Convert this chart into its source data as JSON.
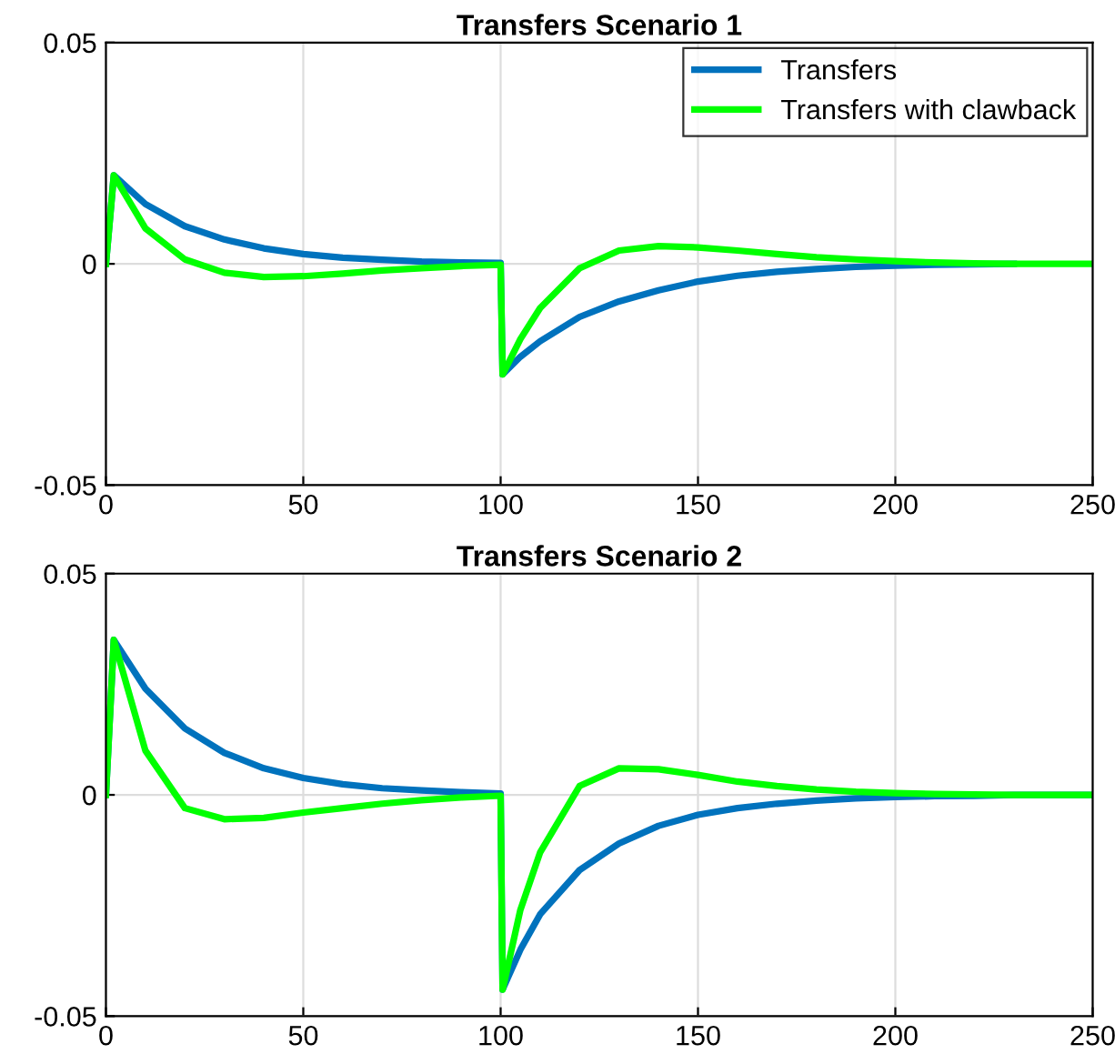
{
  "chart_data": [
    {
      "type": "line",
      "title": "Transfers Scenario 1",
      "xlim": [
        0,
        250
      ],
      "ylim": [
        -0.05,
        0.05
      ],
      "xticks": [
        0,
        50,
        100,
        150,
        200,
        250
      ],
      "yticks": [
        -0.05,
        0,
        0.05
      ],
      "grid": true,
      "legend": "top right",
      "line_style": "solid",
      "x": [
        0,
        2,
        10,
        20,
        30,
        40,
        50,
        60,
        70,
        80,
        90,
        100,
        100.5,
        105,
        110,
        120,
        130,
        140,
        150,
        160,
        170,
        180,
        190,
        200,
        210,
        220,
        230,
        240,
        250
      ],
      "series": [
        {
          "name": "Transfers",
          "color": "#0072bd",
          "values": [
            0,
            0.02,
            0.0135,
            0.0085,
            0.0055,
            0.0035,
            0.0022,
            0.0014,
            0.0009,
            0.0005,
            0.0003,
            0.0002,
            -0.025,
            -0.021,
            -0.0175,
            -0.012,
            -0.0085,
            -0.006,
            -0.004,
            -0.0027,
            -0.0018,
            -0.0012,
            -0.0007,
            -0.0004,
            -0.0002,
            -0.0001,
            0,
            null,
            null
          ]
        },
        {
          "name": "Transfers with clawback",
          "color": "#00ff00",
          "values": [
            0,
            0.02,
            0.008,
            0.001,
            -0.002,
            -0.003,
            -0.0028,
            -0.0022,
            -0.0015,
            -0.001,
            -0.0005,
            -0.0002,
            -0.025,
            -0.017,
            -0.01,
            -0.001,
            0.003,
            0.004,
            0.0037,
            0.003,
            0.0022,
            0.0015,
            0.001,
            0.0006,
            0.0003,
            0.0001,
            0,
            0,
            0
          ]
        }
      ]
    },
    {
      "type": "line",
      "title": "Transfers Scenario 2",
      "xlim": [
        0,
        250
      ],
      "ylim": [
        -0.05,
        0.05
      ],
      "xticks": [
        0,
        50,
        100,
        150,
        200,
        250
      ],
      "yticks": [
        -0.05,
        0,
        0.05
      ],
      "grid": true,
      "line_style": "solid",
      "x": [
        0,
        2,
        10,
        20,
        30,
        40,
        50,
        60,
        70,
        80,
        90,
        100,
        100.5,
        105,
        110,
        120,
        130,
        140,
        150,
        160,
        170,
        180,
        190,
        200,
        210,
        220,
        230,
        240,
        250
      ],
      "series": [
        {
          "color": "#0072bd",
          "values": [
            0,
            0.035,
            0.024,
            0.015,
            0.0095,
            0.006,
            0.0038,
            0.0024,
            0.0015,
            0.001,
            0.0006,
            0.0003,
            -0.044,
            -0.035,
            -0.027,
            -0.017,
            -0.011,
            -0.007,
            -0.0045,
            -0.003,
            -0.002,
            -0.0013,
            -0.0008,
            -0.0005,
            -0.0003,
            -0.0002,
            0,
            0,
            0
          ]
        },
        {
          "color": "#00ff00",
          "values": [
            0,
            0.035,
            0.01,
            -0.003,
            -0.0055,
            -0.0052,
            -0.004,
            -0.003,
            -0.002,
            -0.0012,
            -0.0006,
            -0.0002,
            -0.044,
            -0.026,
            -0.013,
            0.002,
            0.006,
            0.0058,
            0.0045,
            0.003,
            0.002,
            0.0012,
            0.0007,
            0.0004,
            0.0002,
            0.0001,
            0,
            0,
            0
          ]
        }
      ]
    }
  ]
}
